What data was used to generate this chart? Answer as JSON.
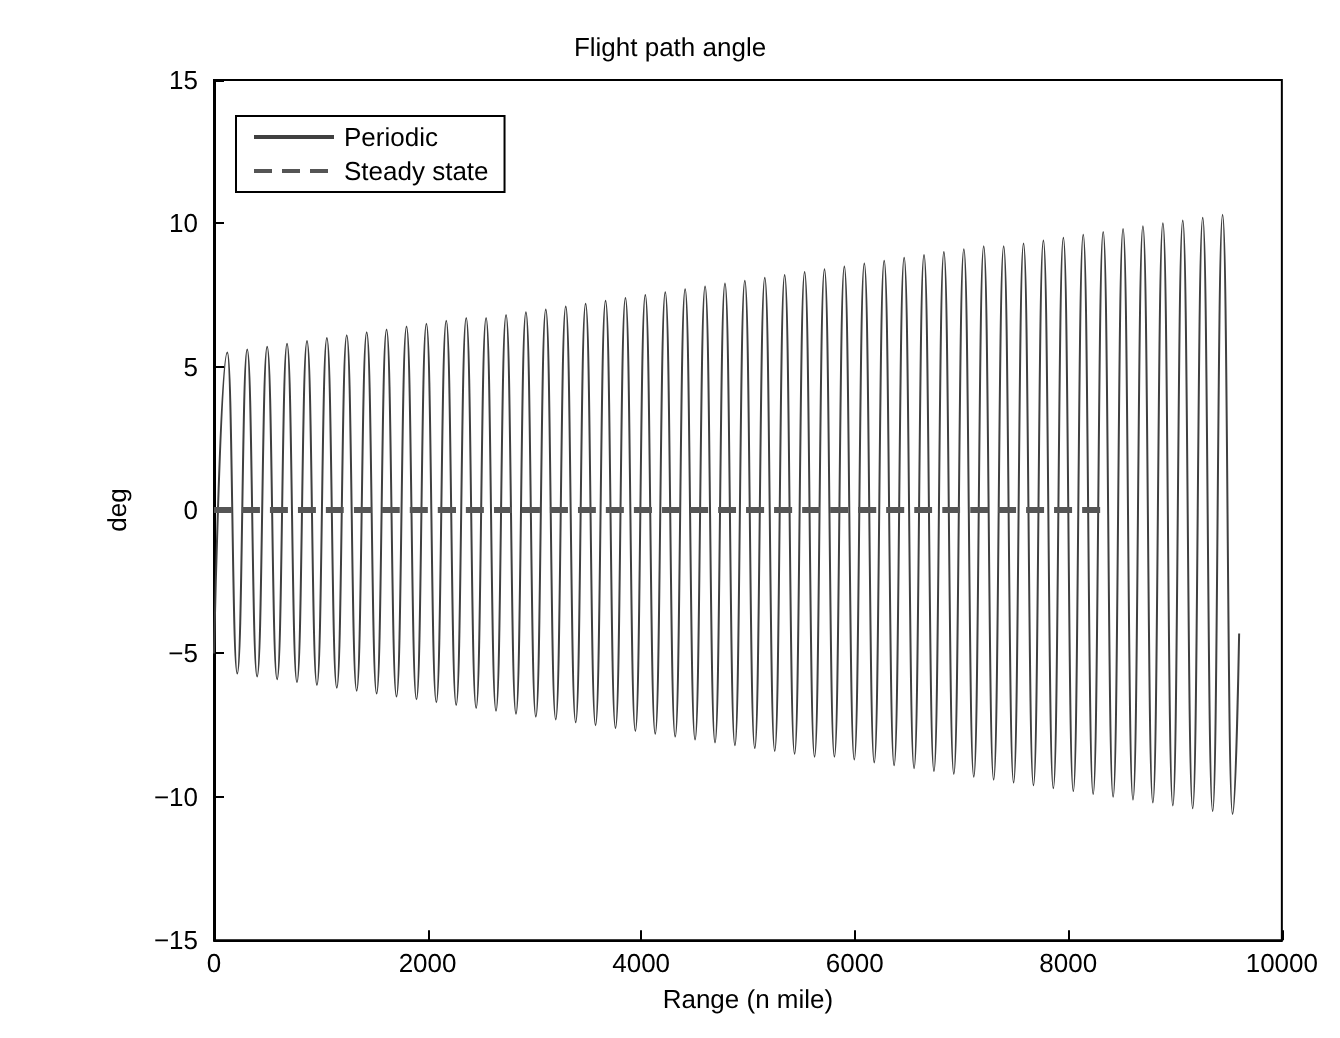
{
  "chart_data": {
    "type": "line",
    "title": "Flight path angle",
    "xlabel": "Range (n mile)",
    "ylabel": "deg",
    "xlim": [
      0,
      10000
    ],
    "xticks": [
      0,
      2000,
      4000,
      6000,
      8000,
      10000
    ],
    "ylim": [
      -15,
      15
    ],
    "yticks": [
      -15,
      -10,
      -5,
      0,
      5,
      10,
      15
    ],
    "grid": false,
    "legend": "top left",
    "marker": "none",
    "series": [
      {
        "name": "Periodic",
        "color": "#404040",
        "line_style": "solid",
        "x": [
          0,
          125,
          218,
          311,
          404,
          498,
          591,
          684,
          777,
          871,
          964,
          1057,
          1150,
          1243,
          1336,
          1430,
          1523,
          1616,
          1709,
          1803,
          1896,
          1989,
          2082,
          2175,
          2268,
          2362,
          2455,
          2548,
          2641,
          2735,
          2828,
          2921,
          3014,
          3107,
          3200,
          3294,
          3387,
          3480,
          3573,
          3667,
          3760,
          3853,
          3946,
          4039,
          4132,
          4226,
          4319,
          4412,
          4505,
          4599,
          4692,
          4785,
          4878,
          4971,
          5064,
          5158,
          5251,
          5344,
          5437,
          5531,
          5624,
          5717,
          5810,
          5903,
          5996,
          6090,
          6183,
          6276,
          6369,
          6463,
          6556,
          6649,
          6742,
          6835,
          6928,
          7022,
          7115,
          7208,
          7301,
          7395,
          7488,
          7581,
          7674,
          7767,
          7860,
          7954,
          8047,
          8140,
          8233,
          8327,
          8420,
          8513,
          8606,
          8699,
          8792,
          8886,
          8979,
          9072,
          9165,
          9259,
          9352,
          9445,
          9538,
          9600
        ],
        "values": [
          -5.0,
          5.5,
          -5.7,
          5.6,
          -5.8,
          5.7,
          -5.9,
          5.8,
          -6.0,
          5.9,
          -6.1,
          6.0,
          -6.2,
          6.1,
          -6.3,
          6.2,
          -6.4,
          6.3,
          -6.5,
          6.4,
          -6.6,
          6.5,
          -6.7,
          6.6,
          -6.8,
          6.7,
          -6.9,
          6.7,
          -7.0,
          6.8,
          -7.1,
          6.9,
          -7.2,
          7.0,
          -7.3,
          7.1,
          -7.4,
          7.2,
          -7.5,
          7.3,
          -7.6,
          7.4,
          -7.7,
          7.5,
          -7.8,
          7.6,
          -7.9,
          7.7,
          -8.0,
          7.8,
          -8.1,
          7.9,
          -8.2,
          8.0,
          -8.3,
          8.1,
          -8.4,
          8.2,
          -8.5,
          8.3,
          -8.6,
          8.4,
          -8.6,
          8.5,
          -8.7,
          8.6,
          -8.8,
          8.7,
          -8.9,
          8.8,
          -9.0,
          8.9,
          -9.1,
          9.0,
          -9.2,
          9.1,
          -9.3,
          9.2,
          -9.4,
          9.2,
          -9.5,
          9.3,
          -9.6,
          9.4,
          -9.7,
          9.5,
          -9.8,
          9.6,
          -9.9,
          9.7,
          -10.0,
          9.8,
          -10.1,
          9.9,
          -10.2,
          10.0,
          -10.3,
          10.1,
          -10.4,
          10.2,
          -10.5,
          10.3,
          -10.6,
          -4.3
        ]
      },
      {
        "name": "Steady state",
        "color": "#555555",
        "line_style": "dashed",
        "x": [
          0,
          8300
        ],
        "values": [
          0,
          0
        ]
      }
    ]
  }
}
